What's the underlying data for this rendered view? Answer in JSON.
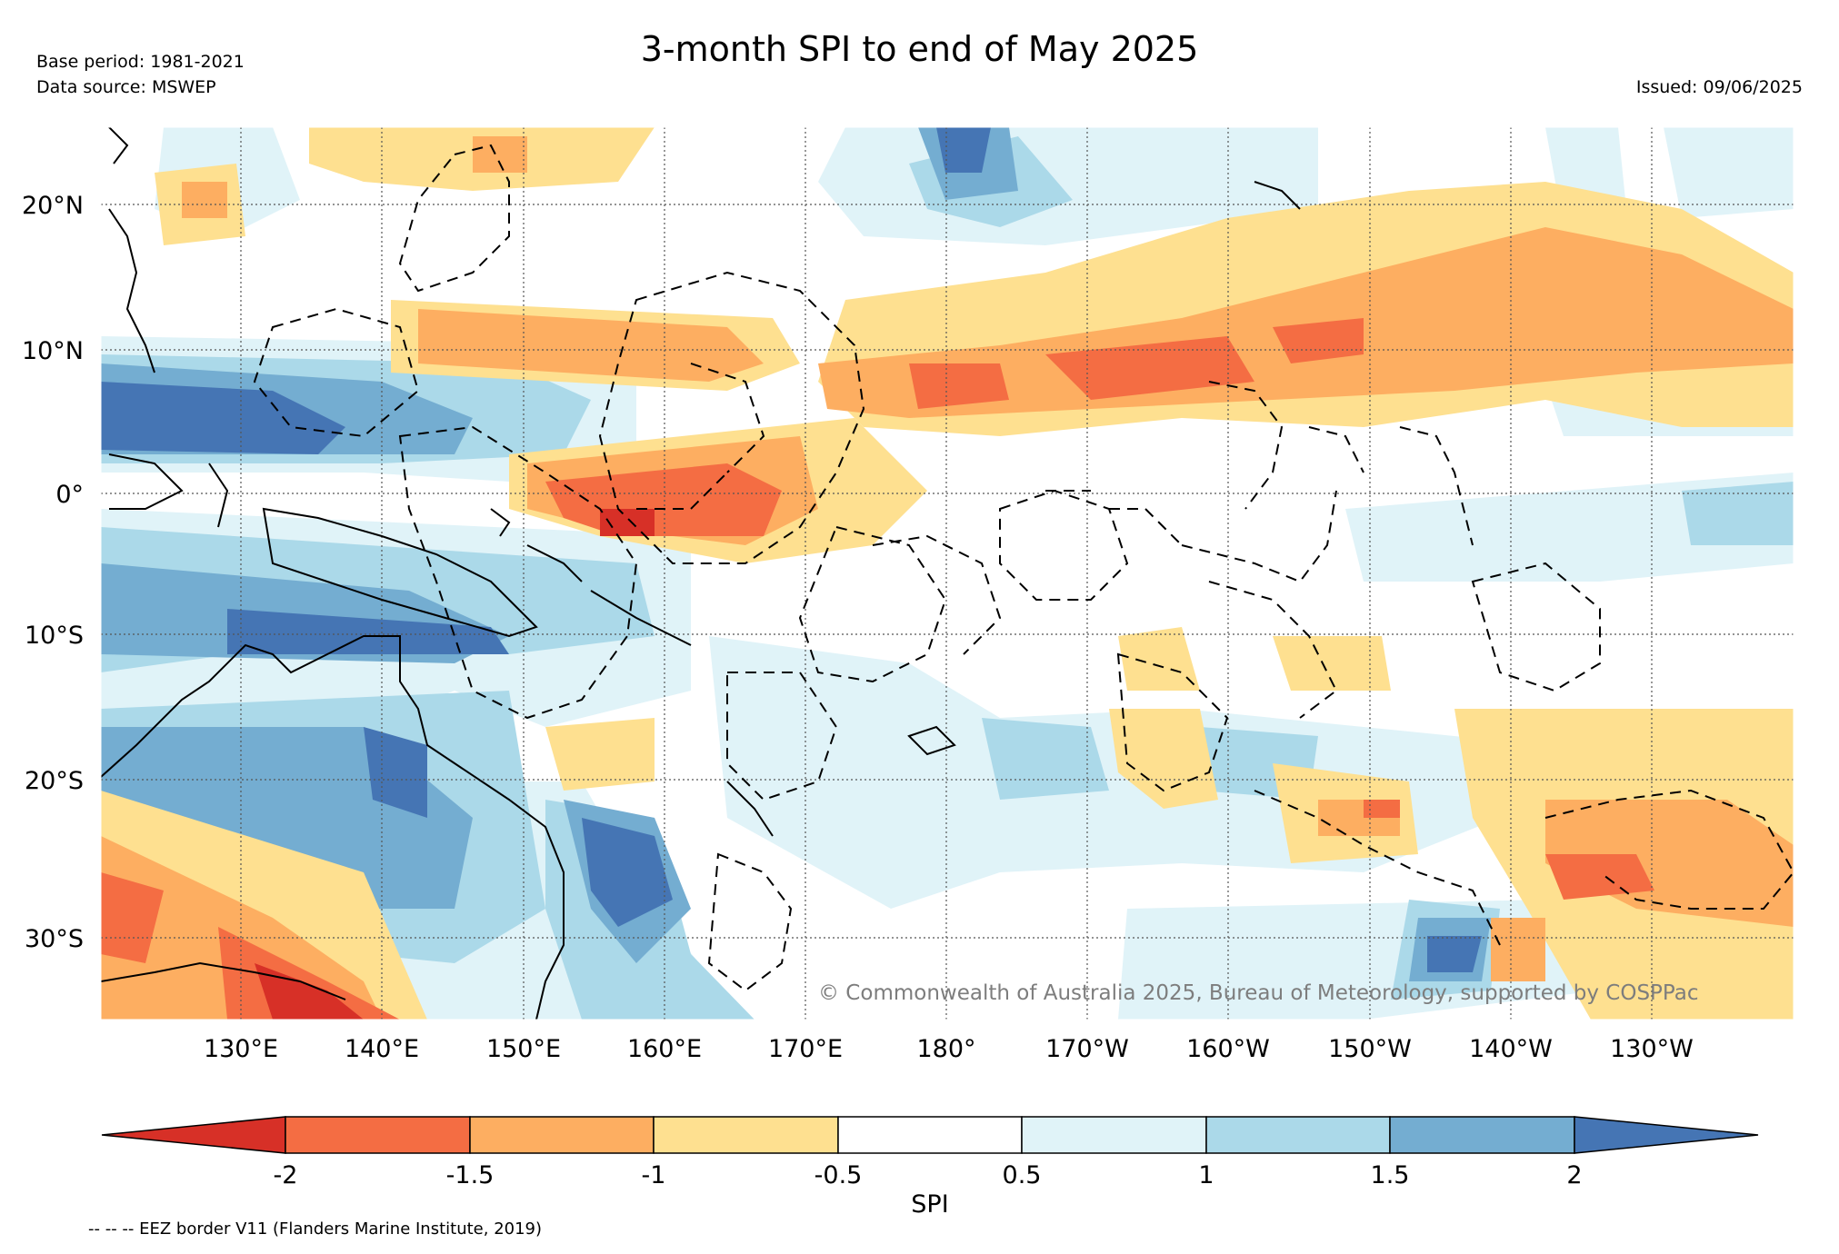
{
  "header": {
    "title": "3-month SPI to end of May 2025",
    "base_period": "Base period: 1981-2021",
    "data_source": "Data source: MSWEP",
    "issued": "Issued: 09/06/2025"
  },
  "map": {
    "lat_labels": [
      "20°N",
      "10°N",
      "0°",
      "10°S",
      "20°S",
      "30°S"
    ],
    "lon_labels": [
      "130°E",
      "140°E",
      "150°E",
      "160°E",
      "170°E",
      "180°",
      "170°W",
      "160°W",
      "150°W",
      "140°W",
      "130°W"
    ],
    "copyright": "© Commonwealth of Australia 2025, Bureau of Meteorology, supported by COSPPac"
  },
  "colorbar": {
    "label": "SPI",
    "ticks": [
      "-2",
      "-1.5",
      "-1",
      "-0.5",
      "0.5",
      "1",
      "1.5",
      "2"
    ],
    "colors": [
      "#d73027",
      "#f46d43",
      "#fdae61",
      "#fee090",
      "#ffffff",
      "#e0f3f8",
      "#abd9e9",
      "#74add1",
      "#4575b4"
    ]
  },
  "footnote": "-- -- -- EEZ border V11 (Flanders Marine Institute, 2019)"
}
